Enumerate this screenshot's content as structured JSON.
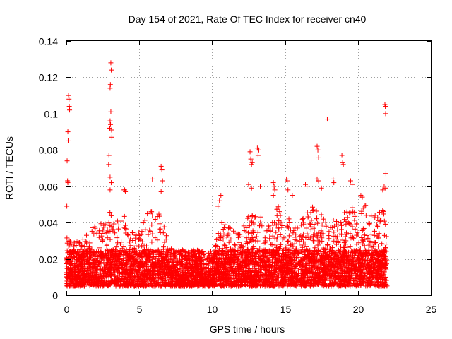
{
  "chart_data": {
    "type": "scatter",
    "title": "Day 154 of 2021, Rate Of TEC Index for receiver cn40",
    "xlabel": "GPS time / hours",
    "ylabel": "ROTI / TECUs",
    "xlim": [
      0,
      25
    ],
    "ylim": [
      0,
      0.14
    ],
    "xticks": [
      0,
      5,
      10,
      15,
      20,
      25
    ],
    "xtick_labels": [
      "0",
      "5",
      "10",
      "15",
      "20",
      "25"
    ],
    "yticks": [
      0,
      0.02,
      0.04,
      0.06,
      0.08,
      0.1,
      0.12,
      0.14
    ],
    "ytick_labels": [
      "0",
      "0.02",
      "0.04",
      "0.06",
      "0.08",
      "0.1",
      "0.12",
      "0.14"
    ],
    "grid": true,
    "marker": "+",
    "color": "#ff0000",
    "series": [
      {
        "name": "ROTI",
        "x_range": [
          0,
          22
        ],
        "baseline_band": [
          0.005,
          0.025
        ],
        "envelope": [
          [
            0.0,
            0.035
          ],
          [
            0.5,
            0.03
          ],
          [
            1.0,
            0.03
          ],
          [
            1.5,
            0.035
          ],
          [
            2.0,
            0.04
          ],
          [
            2.5,
            0.04
          ],
          [
            3.0,
            0.05
          ],
          [
            3.5,
            0.045
          ],
          [
            4.0,
            0.045
          ],
          [
            4.5,
            0.035
          ],
          [
            5.0,
            0.035
          ],
          [
            5.5,
            0.05
          ],
          [
            6.0,
            0.045
          ],
          [
            6.5,
            0.045
          ],
          [
            7.0,
            0.03
          ],
          [
            7.5,
            0.025
          ],
          [
            8.0,
            0.025
          ],
          [
            8.5,
            0.022
          ],
          [
            9.0,
            0.02
          ],
          [
            9.5,
            0.018
          ],
          [
            10.0,
            0.02
          ],
          [
            10.5,
            0.04
          ],
          [
            11.0,
            0.04
          ],
          [
            11.5,
            0.035
          ],
          [
            12.0,
            0.035
          ],
          [
            12.5,
            0.045
          ],
          [
            13.0,
            0.05
          ],
          [
            13.5,
            0.045
          ],
          [
            14.0,
            0.04
          ],
          [
            14.5,
            0.05
          ],
          [
            15.0,
            0.045
          ],
          [
            15.5,
            0.04
          ],
          [
            16.0,
            0.04
          ],
          [
            16.5,
            0.045
          ],
          [
            17.0,
            0.05
          ],
          [
            17.5,
            0.045
          ],
          [
            18.0,
            0.04
          ],
          [
            18.5,
            0.045
          ],
          [
            19.0,
            0.045
          ],
          [
            19.5,
            0.05
          ],
          [
            20.0,
            0.045
          ],
          [
            20.5,
            0.05
          ],
          [
            21.0,
            0.045
          ],
          [
            21.5,
            0.05
          ],
          [
            22.0,
            0.05
          ]
        ],
        "outliers": [
          [
            0.1,
            0.09
          ],
          [
            0.12,
            0.085
          ],
          [
            0.15,
            0.11
          ],
          [
            0.18,
            0.108
          ],
          [
            0.2,
            0.104
          ],
          [
            0.22,
            0.102
          ],
          [
            0.05,
            0.074
          ],
          [
            0.08,
            0.063
          ],
          [
            0.1,
            0.062
          ],
          [
            0.03,
            0.049
          ],
          [
            3.05,
            0.128
          ],
          [
            3.08,
            0.124
          ],
          [
            3.02,
            0.116
          ],
          [
            3.0,
            0.114
          ],
          [
            3.05,
            0.101
          ],
          [
            3.0,
            0.096
          ],
          [
            3.03,
            0.094
          ],
          [
            2.98,
            0.092
          ],
          [
            3.1,
            0.091
          ],
          [
            3.12,
            0.087
          ],
          [
            2.92,
            0.077
          ],
          [
            2.9,
            0.072
          ],
          [
            3.0,
            0.065
          ],
          [
            3.08,
            0.062
          ],
          [
            3.0,
            0.058
          ],
          [
            4.0,
            0.058
          ],
          [
            4.05,
            0.057
          ],
          [
            3.95,
            0.058
          ],
          [
            5.9,
            0.064
          ],
          [
            6.5,
            0.071
          ],
          [
            6.55,
            0.069
          ],
          [
            6.6,
            0.063
          ],
          [
            6.5,
            0.057
          ],
          [
            10.4,
            0.049
          ],
          [
            10.5,
            0.052
          ],
          [
            10.6,
            0.055
          ],
          [
            12.6,
            0.079
          ],
          [
            12.65,
            0.075
          ],
          [
            12.7,
            0.072
          ],
          [
            12.75,
            0.073
          ],
          [
            13.1,
            0.081
          ],
          [
            13.2,
            0.08
          ],
          [
            13.15,
            0.077
          ],
          [
            12.5,
            0.061
          ],
          [
            12.7,
            0.059
          ],
          [
            13.3,
            0.06
          ],
          [
            14.2,
            0.062
          ],
          [
            14.25,
            0.06
          ],
          [
            14.3,
            0.058
          ],
          [
            14.2,
            0.055
          ],
          [
            15.1,
            0.064
          ],
          [
            15.15,
            0.063
          ],
          [
            15.2,
            0.058
          ],
          [
            15.5,
            0.055
          ],
          [
            16.4,
            0.061
          ],
          [
            16.5,
            0.06
          ],
          [
            17.2,
            0.082
          ],
          [
            17.25,
            0.08
          ],
          [
            17.3,
            0.076
          ],
          [
            17.2,
            0.064
          ],
          [
            17.3,
            0.063
          ],
          [
            17.5,
            0.059
          ],
          [
            17.9,
            0.097
          ],
          [
            18.3,
            0.064
          ],
          [
            18.35,
            0.062
          ],
          [
            18.9,
            0.077
          ],
          [
            18.95,
            0.073
          ],
          [
            19.0,
            0.072
          ],
          [
            19.5,
            0.063
          ],
          [
            19.6,
            0.061
          ],
          [
            20.2,
            0.055
          ],
          [
            20.3,
            0.054
          ],
          [
            21.85,
            0.105
          ],
          [
            21.88,
            0.104
          ],
          [
            21.9,
            0.1
          ],
          [
            21.92,
            0.067
          ],
          [
            21.9,
            0.059
          ],
          [
            21.8,
            0.06
          ],
          [
            21.7,
            0.058
          ]
        ]
      }
    ]
  }
}
